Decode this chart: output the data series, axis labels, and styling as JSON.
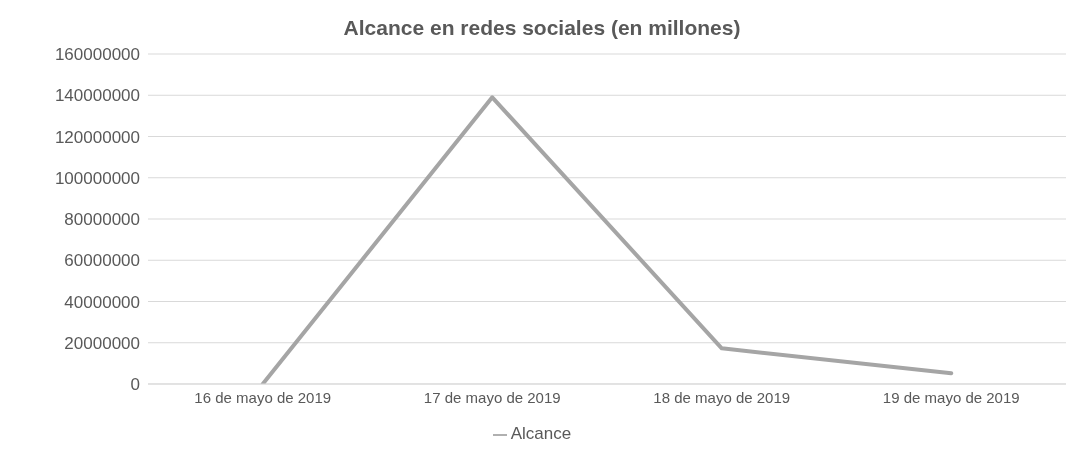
{
  "chart_data": {
    "type": "line",
    "title": "Alcance en redes sociales (en millones)",
    "categories": [
      "16 de mayo de 2019",
      "17 de mayo de 2019",
      "18 de mayo de 2019",
      "19 de mayo de 2019"
    ],
    "series": [
      {
        "name": "Alcance",
        "color": "#a5a5a5",
        "values": [
          0,
          139000000,
          17300000,
          5200000
        ]
      }
    ],
    "ylim": [
      0,
      160000000
    ],
    "yticks": [
      0,
      20000000,
      40000000,
      60000000,
      80000000,
      100000000,
      120000000,
      140000000,
      160000000
    ],
    "grid": "y",
    "legend": "bottom",
    "marker": "none",
    "line_style": "solid"
  }
}
